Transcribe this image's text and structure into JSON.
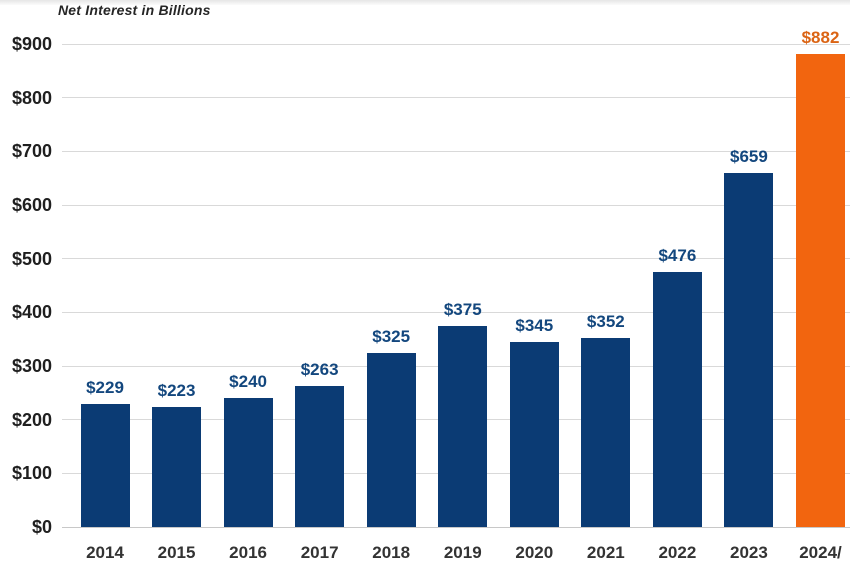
{
  "chart_data": {
    "type": "bar",
    "title": "Net Interest in Billions",
    "categories": [
      "2014",
      "2015",
      "2016",
      "2017",
      "2018",
      "2019",
      "2020",
      "2021",
      "2022",
      "2023",
      "2024/"
    ],
    "values": [
      229,
      223,
      240,
      263,
      325,
      375,
      345,
      352,
      476,
      659,
      882
    ],
    "value_labels": [
      "$229",
      "$223",
      "$240",
      "$263",
      "$325",
      "$375",
      "$345",
      "$352",
      "$476",
      "$659",
      "$882"
    ],
    "y_tick_values": [
      0,
      100,
      200,
      300,
      400,
      500,
      600,
      700,
      800,
      900
    ],
    "y_tick_labels": [
      "$0",
      "$100",
      "$200",
      "$300",
      "$400",
      "$500",
      "$600",
      "$700",
      "$800",
      "$900"
    ],
    "ylim": [
      0,
      900
    ],
    "xlabel": "",
    "ylabel": "",
    "grid": true,
    "legend_position": "none",
    "highlight_index": 10,
    "colors": {
      "bar_default": "#0B3B74",
      "bar_highlight": "#F2650F",
      "value_label_default": "#13477E",
      "value_label_highlight": "#DB6414",
      "gridline": "#D9D9D9",
      "axis_line": "#C8C8C8",
      "y_axis_text": "#1F1F1F",
      "x_axis_text": "#333333",
      "title_text": "#262626"
    }
  }
}
